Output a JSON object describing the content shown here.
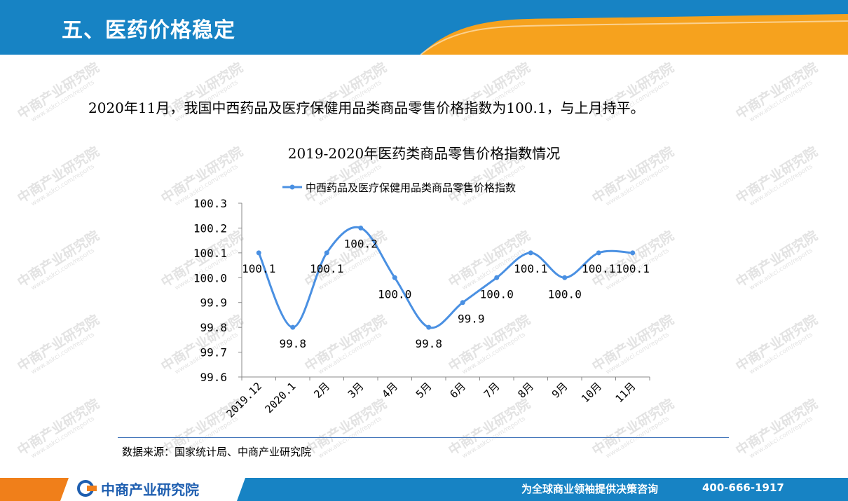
{
  "header": {
    "title": "五、医药价格稳定"
  },
  "intro": "2020年11月，我国中西药品及医疗保健用品类商品零售价格指数为100.1，与上月持平。",
  "watermark": {
    "name": "中商产业研究院",
    "url": "www.askci.com/reports"
  },
  "chart_data": {
    "type": "line",
    "title": "2019-2020年医药类商品零售价格指数情况",
    "legend": {
      "position": "top"
    },
    "categories": [
      "2019.12",
      "2020.1",
      "2月",
      "3月",
      "4月",
      "5月",
      "6月",
      "7月",
      "8月",
      "9月",
      "10月",
      "11月"
    ],
    "series": [
      {
        "name": "中西药品及医疗保健用品类商品零售价格指数",
        "values": [
          100.1,
          99.8,
          100.1,
          100.2,
          100.0,
          99.8,
          99.9,
          100.0,
          100.1,
          100.0,
          100.1,
          100.1
        ],
        "data_labels": [
          "100.1",
          "99.8",
          "100.1",
          "100.2",
          "100.0",
          "99.8",
          "99.9",
          "100.0",
          "100.1",
          "100.0",
          "100.1",
          "100.1"
        ],
        "color": "#4a90e2"
      }
    ],
    "ylim": [
      99.6,
      100.3
    ],
    "yticks": [
      "100.3",
      "100.2",
      "100.1",
      "100.0",
      "99.9",
      "99.8",
      "99.7",
      "99.6"
    ],
    "grid": false,
    "smooth": true
  },
  "source": "数据来源：国家统计局、中商产业研究院",
  "footer": {
    "brand": "中商产业研究院",
    "slogan": "为全球商业领袖提供决策咨询",
    "phone": "400-666-1917"
  },
  "colors": {
    "header_blue": "#1783c4",
    "accent_orange": "#f6a21e",
    "brand_blue": "#1f5fb0"
  }
}
